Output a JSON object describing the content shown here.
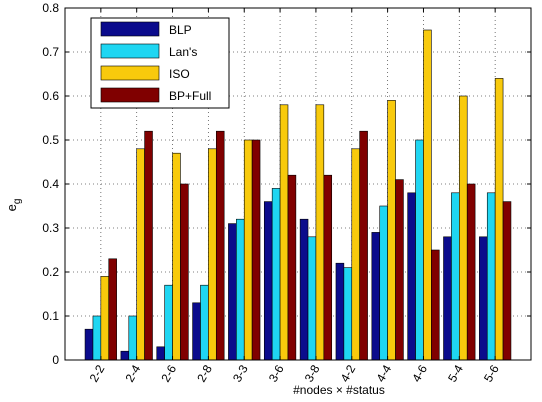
{
  "chart_data": {
    "type": "bar",
    "title": "",
    "xlabel": "#nodes × #status",
    "ylabel": "e",
    "ylabel_sub": "g",
    "categories": [
      "2-2",
      "2-4",
      "2-6",
      "2-8",
      "3-3",
      "3-6",
      "3-8",
      "4-2",
      "4-4",
      "4-6",
      "5-4",
      "5-6"
    ],
    "ylim": [
      0,
      0.8
    ],
    "yticks": [
      "0",
      "0.1",
      "0.2",
      "0.3",
      "0.4",
      "0.5",
      "0.6",
      "0.7",
      "0.8"
    ],
    "grid": "dotted",
    "legend_position": "top-left",
    "series": [
      {
        "name": "BLP",
        "color": "#0b0b8c",
        "values": [
          0.07,
          0.02,
          0.03,
          0.13,
          0.31,
          0.36,
          0.32,
          0.22,
          0.29,
          0.38,
          0.28,
          0.28
        ]
      },
      {
        "name": "Lan's",
        "color": "#1fd6f2",
        "values": [
          0.1,
          0.1,
          0.17,
          0.17,
          0.32,
          0.39,
          0.28,
          0.21,
          0.35,
          0.5,
          0.38,
          0.38
        ]
      },
      {
        "name": "ISO",
        "color": "#f8ca0c",
        "values": [
          0.19,
          0.48,
          0.47,
          0.48,
          0.5,
          0.58,
          0.58,
          0.48,
          0.59,
          0.75,
          0.6,
          0.64
        ]
      },
      {
        "name": "BP+Full",
        "color": "#800000",
        "values": [
          0.23,
          0.52,
          0.4,
          0.52,
          0.5,
          0.42,
          0.42,
          0.52,
          0.41,
          0.25,
          0.4,
          0.36
        ]
      }
    ]
  }
}
